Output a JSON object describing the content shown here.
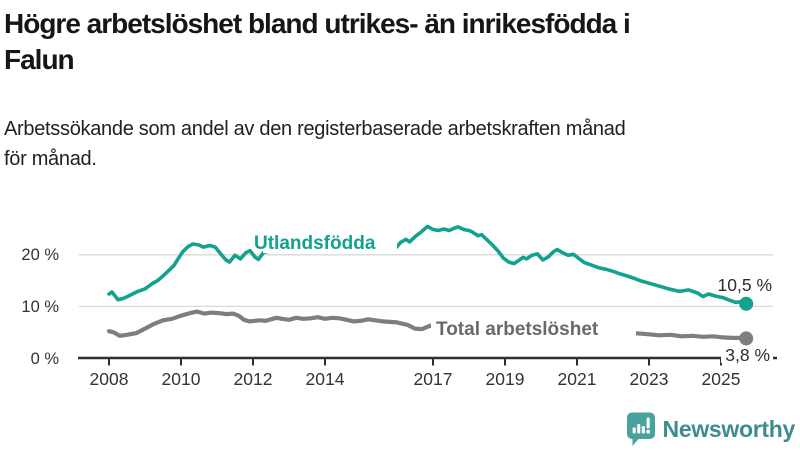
{
  "header": {
    "title": "Högre arbetslöshet bland utrikes- än inrikesfödda i\nFalun",
    "subtitle": "Arbetssökande som andel av den registerbaserade arbetskraften månad\nför månad."
  },
  "chart_data": {
    "type": "line",
    "title": "Högre arbetslöshet bland utrikes- än inrikesfödda i Falun",
    "subtitle": "Arbetssökande som andel av den registerbaserade arbetskraften månad för månad.",
    "unit": "%",
    "grid": "horizontal",
    "legend_position": "inline-labels",
    "xlim": [
      2007.1,
      2026.4
    ],
    "ylim": [
      0,
      27
    ],
    "x_ticks": [
      {
        "year": 2008,
        "label": "2008"
      },
      {
        "year": 2010,
        "label": "2010"
      },
      {
        "year": 2012,
        "label": "2012"
      },
      {
        "year": 2014,
        "label": "2014"
      },
      {
        "year": 2017,
        "label": "2017"
      },
      {
        "year": 2019,
        "label": "2019"
      },
      {
        "year": 2021,
        "label": "2021"
      },
      {
        "year": 2023,
        "label": "2023"
      },
      {
        "year": 2025,
        "label": "2025"
      }
    ],
    "y_ticks": [
      {
        "value": 0,
        "label": "0 %"
      },
      {
        "value": 10,
        "label": "10 %"
      },
      {
        "value": 20,
        "label": "20 %"
      }
    ],
    "series": [
      {
        "name": "Utlandsfödda",
        "color": "#13a28d",
        "label_color": "#13a28d",
        "end_label": "10,5 %",
        "end_value": 10.5,
        "points": [
          [
            2008.0,
            12.4
          ],
          [
            2008.08,
            12.8
          ],
          [
            2008.25,
            11.3
          ],
          [
            2008.42,
            11.6
          ],
          [
            2008.6,
            12.2
          ],
          [
            2008.8,
            12.9
          ],
          [
            2009.0,
            13.4
          ],
          [
            2009.2,
            14.4
          ],
          [
            2009.35,
            15.0
          ],
          [
            2009.5,
            15.9
          ],
          [
            2009.65,
            16.9
          ],
          [
            2009.8,
            17.9
          ],
          [
            2009.92,
            19.2
          ],
          [
            2010.05,
            20.6
          ],
          [
            2010.2,
            21.6
          ],
          [
            2010.33,
            22.1
          ],
          [
            2010.5,
            21.9
          ],
          [
            2010.62,
            21.5
          ],
          [
            2010.8,
            21.8
          ],
          [
            2010.95,
            21.5
          ],
          [
            2011.1,
            20.2
          ],
          [
            2011.25,
            19.0
          ],
          [
            2011.35,
            18.6
          ],
          [
            2011.5,
            19.9
          ],
          [
            2011.65,
            19.2
          ],
          [
            2011.8,
            20.4
          ],
          [
            2011.92,
            20.8
          ],
          [
            2012.05,
            19.6
          ],
          [
            2012.15,
            19.1
          ],
          [
            2012.3,
            20.5
          ],
          [
            2012.6,
            20.9
          ],
          [
            2012.9,
            21.2
          ],
          [
            2013.2,
            21.0
          ],
          [
            2013.5,
            21.2
          ],
          [
            2013.8,
            21.0
          ],
          [
            2014.1,
            21.3
          ],
          [
            2014.4,
            21.1
          ],
          [
            2014.7,
            21.0
          ],
          [
            2015.0,
            21.1
          ],
          [
            2015.3,
            21.2
          ],
          [
            2015.6,
            21.4
          ],
          [
            2015.85,
            21.8
          ],
          [
            2015.95,
            21.2
          ],
          [
            2016.1,
            22.4
          ],
          [
            2016.25,
            23.0
          ],
          [
            2016.35,
            22.5
          ],
          [
            2016.5,
            23.5
          ],
          [
            2016.65,
            24.3
          ],
          [
            2016.85,
            25.5
          ],
          [
            2017.0,
            24.9
          ],
          [
            2017.15,
            24.7
          ],
          [
            2017.3,
            25.0
          ],
          [
            2017.45,
            24.7
          ],
          [
            2017.6,
            25.2
          ],
          [
            2017.7,
            25.4
          ],
          [
            2017.85,
            24.9
          ],
          [
            2018.0,
            24.7
          ],
          [
            2018.1,
            24.4
          ],
          [
            2018.25,
            23.7
          ],
          [
            2018.35,
            23.9
          ],
          [
            2018.5,
            22.9
          ],
          [
            2018.65,
            21.9
          ],
          [
            2018.8,
            20.8
          ],
          [
            2018.95,
            19.4
          ],
          [
            2019.1,
            18.6
          ],
          [
            2019.25,
            18.3
          ],
          [
            2019.4,
            19.0
          ],
          [
            2019.5,
            19.5
          ],
          [
            2019.6,
            19.2
          ],
          [
            2019.75,
            19.9
          ],
          [
            2019.9,
            20.2
          ],
          [
            2020.05,
            19.0
          ],
          [
            2020.2,
            19.6
          ],
          [
            2020.35,
            20.6
          ],
          [
            2020.45,
            21.0
          ],
          [
            2020.6,
            20.4
          ],
          [
            2020.75,
            19.9
          ],
          [
            2020.9,
            20.1
          ],
          [
            2021.05,
            19.3
          ],
          [
            2021.2,
            18.5
          ],
          [
            2021.4,
            18.0
          ],
          [
            2021.6,
            17.5
          ],
          [
            2021.8,
            17.2
          ],
          [
            2022.0,
            16.8
          ],
          [
            2022.2,
            16.3
          ],
          [
            2022.4,
            15.9
          ],
          [
            2022.6,
            15.4
          ],
          [
            2022.75,
            15.0
          ],
          [
            2023.0,
            14.5
          ],
          [
            2023.3,
            13.9
          ],
          [
            2023.6,
            13.3
          ],
          [
            2023.85,
            12.9
          ],
          [
            2024.1,
            13.2
          ],
          [
            2024.35,
            12.6
          ],
          [
            2024.5,
            11.9
          ],
          [
            2024.65,
            12.4
          ],
          [
            2024.85,
            12.0
          ],
          [
            2025.05,
            11.7
          ],
          [
            2025.2,
            11.3
          ],
          [
            2025.4,
            10.8
          ],
          [
            2025.55,
            10.9
          ],
          [
            2025.7,
            10.5
          ]
        ]
      },
      {
        "name": "Total arbetslöshet",
        "color": "#7e7e7e",
        "label_color": "#696969",
        "end_label": "3,8 %",
        "end_value": 3.8,
        "points": [
          [
            2008.0,
            5.2
          ],
          [
            2008.12,
            5.0
          ],
          [
            2008.3,
            4.3
          ],
          [
            2008.5,
            4.5
          ],
          [
            2008.75,
            4.8
          ],
          [
            2009.0,
            5.7
          ],
          [
            2009.25,
            6.6
          ],
          [
            2009.5,
            7.3
          ],
          [
            2009.75,
            7.6
          ],
          [
            2010.0,
            8.2
          ],
          [
            2010.25,
            8.7
          ],
          [
            2010.45,
            9.0
          ],
          [
            2010.65,
            8.6
          ],
          [
            2010.85,
            8.8
          ],
          [
            2011.05,
            8.7
          ],
          [
            2011.25,
            8.5
          ],
          [
            2011.45,
            8.6
          ],
          [
            2011.6,
            8.2
          ],
          [
            2011.75,
            7.4
          ],
          [
            2011.9,
            7.1
          ],
          [
            2012.05,
            7.2
          ],
          [
            2012.2,
            7.3
          ],
          [
            2012.35,
            7.2
          ],
          [
            2012.5,
            7.5
          ],
          [
            2012.65,
            7.8
          ],
          [
            2012.8,
            7.6
          ],
          [
            2013.0,
            7.4
          ],
          [
            2013.2,
            7.8
          ],
          [
            2013.4,
            7.6
          ],
          [
            2013.6,
            7.7
          ],
          [
            2013.8,
            7.9
          ],
          [
            2014.0,
            7.6
          ],
          [
            2014.2,
            7.8
          ],
          [
            2014.4,
            7.7
          ],
          [
            2014.6,
            7.4
          ],
          [
            2014.8,
            7.1
          ],
          [
            2015.0,
            7.2
          ],
          [
            2015.2,
            7.5
          ],
          [
            2015.4,
            7.3
          ],
          [
            2015.6,
            7.1
          ],
          [
            2015.8,
            7.0
          ],
          [
            2016.0,
            6.9
          ],
          [
            2016.3,
            6.4
          ],
          [
            2016.5,
            5.7
          ],
          [
            2016.7,
            5.6
          ],
          [
            2016.9,
            6.2
          ],
          [
            2017.05,
            6.4
          ],
          [
            2017.5,
            6.2
          ],
          [
            2018.0,
            5.9
          ],
          [
            2018.5,
            5.7
          ],
          [
            2019.0,
            5.5
          ],
          [
            2019.5,
            5.4
          ],
          [
            2020.0,
            5.8
          ],
          [
            2020.5,
            6.3
          ],
          [
            2021.0,
            6.0
          ],
          [
            2021.5,
            5.6
          ],
          [
            2022.0,
            5.2
          ],
          [
            2022.3,
            5.0
          ],
          [
            2022.6,
            4.8
          ],
          [
            2022.8,
            4.7
          ],
          [
            2023.0,
            4.6
          ],
          [
            2023.3,
            4.4
          ],
          [
            2023.6,
            4.5
          ],
          [
            2023.9,
            4.2
          ],
          [
            2024.2,
            4.3
          ],
          [
            2024.5,
            4.1
          ],
          [
            2024.8,
            4.2
          ],
          [
            2025.05,
            4.0
          ],
          [
            2025.3,
            3.9
          ],
          [
            2025.5,
            3.9
          ],
          [
            2025.7,
            3.8
          ]
        ]
      }
    ]
  },
  "footer": {
    "brand": "Newsworthy"
  },
  "colors": {
    "accent_teal": "#13a28d",
    "line_gray": "#7e7e7e",
    "axis": "#2e2e2e",
    "gridline": "#d9d9d9",
    "logo_bubble": "#49a29c",
    "logo_text": "#3d8c8f"
  }
}
